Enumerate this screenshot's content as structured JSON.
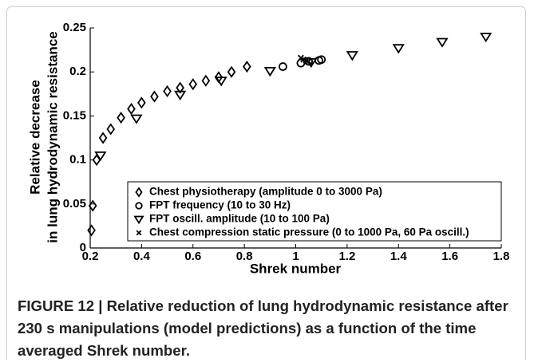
{
  "chart_data": {
    "type": "scatter",
    "xlabel": "Shrek number",
    "ylabel": [
      "Relative decrease",
      "in lung hydrodynamic resistance"
    ],
    "xlim": [
      0.2,
      1.8
    ],
    "xticks": [
      0.2,
      0.4,
      0.6,
      0.8,
      1,
      1.2,
      1.4,
      1.6,
      1.8
    ],
    "ylim": [
      0,
      0.25
    ],
    "yticks": [
      0,
      0.05,
      0.1,
      0.15,
      0.2,
      0.25
    ],
    "legend": "lower right",
    "series": [
      {
        "name": "Chest physiotherapy (amplitude 0 to 3000 Pa)",
        "color": "#000000",
        "marker": "diamond",
        "x": [
          0.205,
          0.21,
          0.225,
          0.25,
          0.28,
          0.32,
          0.36,
          0.4,
          0.45,
          0.5,
          0.55,
          0.6,
          0.65,
          0.7,
          0.75,
          0.81
        ],
        "values": [
          0.02,
          0.048,
          0.1,
          0.125,
          0.135,
          0.148,
          0.158,
          0.165,
          0.172,
          0.178,
          0.182,
          0.186,
          0.19,
          0.194,
          0.2,
          0.206
        ]
      },
      {
        "name": "FPT frequency (10 to 30 Hz)",
        "color": "#000000",
        "marker": "circle",
        "x": [
          0.95,
          1.02,
          1.05,
          1.09,
          1.1
        ],
        "values": [
          0.206,
          0.21,
          0.212,
          0.213,
          0.214
        ]
      },
      {
        "name": "FPT oscill. amplitude (10 to 100 Pa)",
        "color": "#000000",
        "marker": "triangle-down",
        "x": [
          0.24,
          0.38,
          0.55,
          0.71,
          0.9,
          1.06,
          1.22,
          1.4,
          1.57,
          1.74
        ],
        "values": [
          0.105,
          0.147,
          0.174,
          0.19,
          0.201,
          0.211,
          0.219,
          0.227,
          0.234,
          0.24
        ]
      },
      {
        "name": "Chest compression static pressure (0 to 1000 Pa, 60 Pa oscill.)",
        "color": "#000000",
        "marker": "x",
        "x": [
          1.02,
          1.03,
          1.04,
          1.05
        ],
        "values": [
          0.216,
          0.214,
          0.213,
          0.212
        ]
      }
    ]
  },
  "caption": "FIGURE 12 | Relative reduction of lung hydrodynamic resistance after 230 s manipulations (model predictions) as a function of the time averaged Shrek number."
}
